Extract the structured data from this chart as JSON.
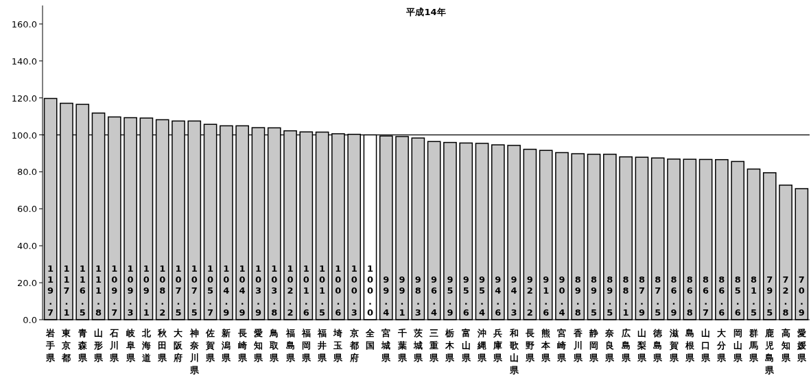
{
  "chart_data": {
    "type": "bar",
    "title": "平成14年",
    "categories": [
      "岩手県",
      "東京都",
      "青森県",
      "山形県",
      "石川県",
      "岐阜県",
      "北海道",
      "秋田県",
      "大阪府",
      "神奈川県",
      "佐賀県",
      "新潟県",
      "長崎県",
      "愛知県",
      "鳥取県",
      "福島県",
      "福岡県",
      "福井県",
      "埼玉県",
      "京都府",
      "全国",
      "宮城県",
      "千葉県",
      "茨城県",
      "三重県",
      "栃木県",
      "富山県",
      "沖縄県",
      "兵庫県",
      "和歌山県",
      "長野県",
      "熊本県",
      "宮崎県",
      "香川県",
      "静岡県",
      "奈良県",
      "広島県",
      "山梨県",
      "徳島県",
      "滋賀県",
      "島根県",
      "山口県",
      "大分県",
      "岡山県",
      "群馬県",
      "鹿児島県",
      "高知県",
      "愛媛県"
    ],
    "values": [
      119.7,
      117.1,
      116.5,
      111.8,
      109.7,
      109.3,
      109.1,
      108.2,
      107.5,
      107.5,
      105.7,
      104.9,
      104.9,
      103.9,
      103.8,
      102.2,
      101.6,
      101.5,
      100.6,
      100.3,
      100.0,
      99.4,
      99.1,
      98.3,
      96.4,
      95.9,
      95.6,
      95.4,
      94.6,
      94.3,
      92.2,
      91.6,
      90.4,
      89.8,
      89.5,
      89.5,
      88.1,
      87.9,
      87.5,
      86.9,
      86.8,
      86.7,
      86.6,
      85.6,
      81.5,
      79.5,
      72.8,
      70.9
    ],
    "colors": [
      "#c8c8c8",
      "#c8c8c8",
      "#c8c8c8",
      "#c8c8c8",
      "#c8c8c8",
      "#c8c8c8",
      "#c8c8c8",
      "#c8c8c8",
      "#c8c8c8",
      "#c8c8c8",
      "#c8c8c8",
      "#c8c8c8",
      "#c8c8c8",
      "#c8c8c8",
      "#c8c8c8",
      "#c8c8c8",
      "#c8c8c8",
      "#c8c8c8",
      "#c8c8c8",
      "#c8c8c8",
      "#ffffff",
      "#c8c8c8",
      "#c8c8c8",
      "#c8c8c8",
      "#c8c8c8",
      "#c8c8c8",
      "#c8c8c8",
      "#c8c8c8",
      "#c8c8c8",
      "#c8c8c8",
      "#c8c8c8",
      "#c8c8c8",
      "#c8c8c8",
      "#c8c8c8",
      "#c8c8c8",
      "#c8c8c8",
      "#c8c8c8",
      "#c8c8c8",
      "#c8c8c8",
      "#c8c8c8",
      "#c8c8c8",
      "#c8c8c8",
      "#c8c8c8",
      "#c8c8c8",
      "#c8c8c8",
      "#c8c8c8",
      "#c8c8c8",
      "#c8c8c8"
    ],
    "ylim": [
      0,
      170
    ],
    "yticks": [
      {
        "value": 0,
        "label": "0.0"
      },
      {
        "value": 20,
        "label": "20.0"
      },
      {
        "value": 40,
        "label": "40.0"
      },
      {
        "value": 60,
        "label": "60.0"
      },
      {
        "value": 80,
        "label": "80.0"
      },
      {
        "value": 100,
        "label": "100.0"
      },
      {
        "value": 120,
        "label": "120.0"
      },
      {
        "value": 140,
        "label": "140.0"
      },
      {
        "value": 160,
        "label": "160.0"
      }
    ],
    "ref_lines": [
      {
        "axis": "y",
        "value": 100,
        "color": "#000000"
      }
    ],
    "value_labels": [
      "119.7",
      "117.1",
      "116.5",
      "111.8",
      "109.7",
      "109.3",
      "109.1",
      "108.2",
      "107.5",
      "107.5",
      "105.7",
      "104.9",
      "104.9",
      "103.9",
      "103.8",
      "102.2",
      "101.6",
      "101.5",
      "100.6",
      "100.3",
      "100.0",
      "99.4",
      "99.1",
      "98.3",
      "96.4",
      "95.9",
      "95.6",
      "95.4",
      "94.6",
      "94.3",
      "92.2",
      "91.6",
      "90.4",
      "89.8",
      "89.5",
      "89.5",
      "88.1",
      "87.9",
      "87.5",
      "86.9",
      "86.8",
      "86.7",
      "86.6",
      "85.6",
      "81.5",
      "79.5",
      "72.8",
      "70.9"
    ],
    "grid": false
  }
}
